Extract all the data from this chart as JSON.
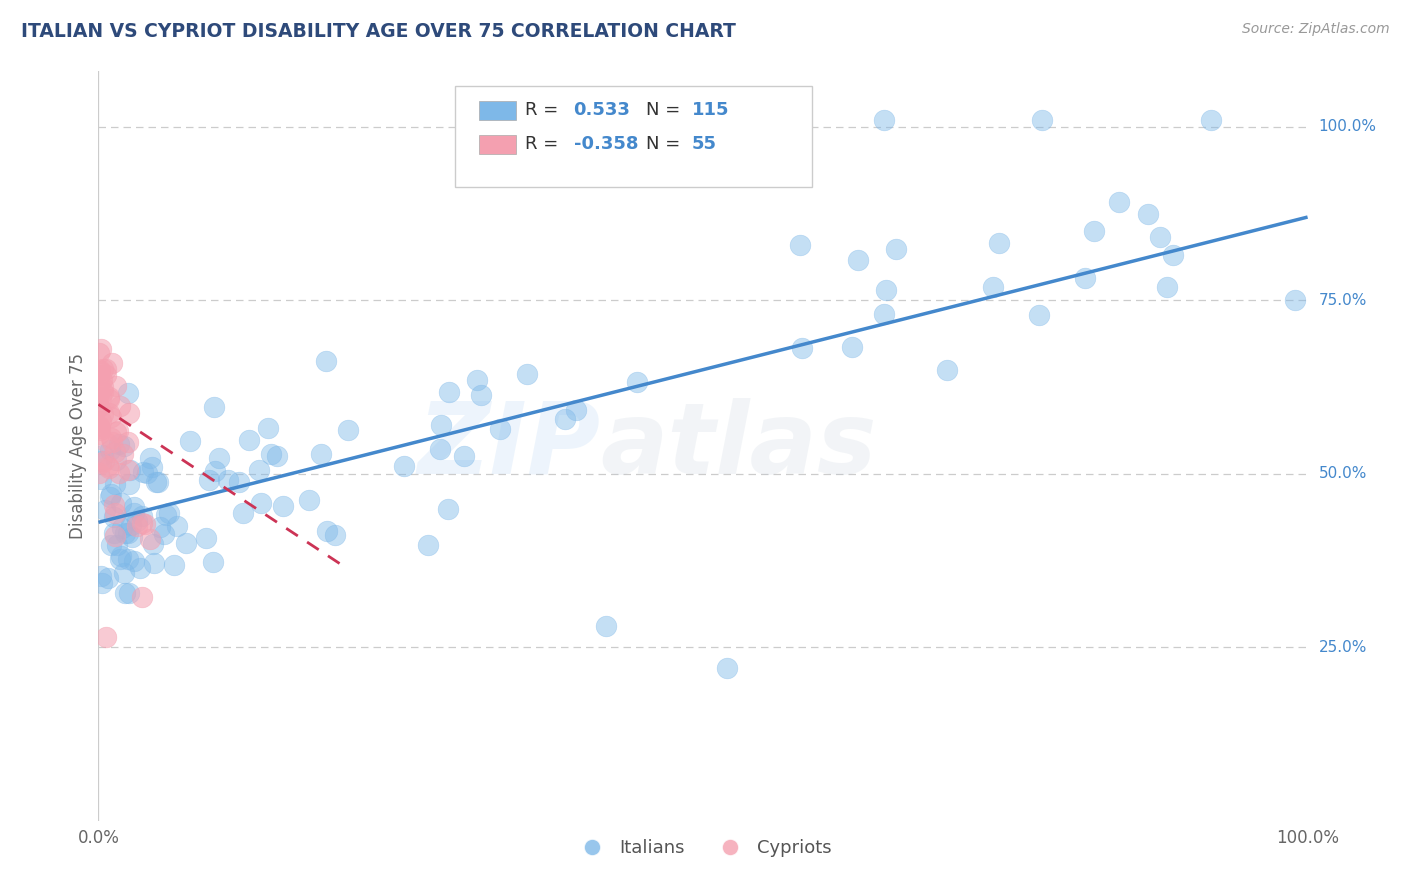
{
  "title": "ITALIAN VS CYPRIOT DISABILITY AGE OVER 75 CORRELATION CHART",
  "source": "Source: ZipAtlas.com",
  "ylabel": "Disability Age Over 75",
  "title_color": "#2E4A7A",
  "source_color": "#999999",
  "italian_color": "#7EB8E8",
  "cypriot_color": "#F4A0B0",
  "trend_italian_color": "#4488CC",
  "trend_cypriot_color": "#CC3355",
  "grid_color": "#CCCCCC",
  "background_color": "#FFFFFF",
  "R_italian": 0.533,
  "R_cypriot": -0.358,
  "N_italian": 115,
  "N_cypriot": 55,
  "legend_r_color": "#000000",
  "legend_val_color": "#4488CC",
  "right_label_color": "#4488CC",
  "watermark_zip_color": "#88BBEE",
  "watermark_atlas_color": "#AABBCC",
  "trend_it_x0": 0.0,
  "trend_it_x1": 1.0,
  "trend_it_y0": 0.43,
  "trend_it_y1": 0.87,
  "trend_cy_x0": 0.0,
  "trend_cy_x1": 0.2,
  "trend_cy_y0": 0.6,
  "trend_cy_y1": 0.37,
  "xmin": 0.0,
  "xmax": 1.0,
  "ymin": 0.0,
  "ymax": 1.08
}
